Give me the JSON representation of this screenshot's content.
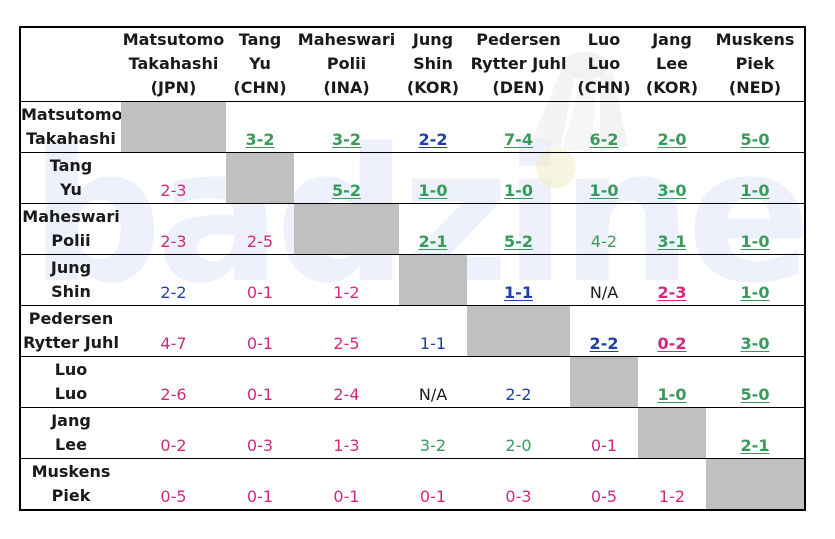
{
  "columns": [
    {
      "name": [
        "Matsutomo",
        "Takahashi"
      ],
      "country": "(JPN)"
    },
    {
      "name": [
        "Tang",
        "Yu"
      ],
      "country": "(CHN)"
    },
    {
      "name": [
        "Maheswari",
        "Polii"
      ],
      "country": "(INA)"
    },
    {
      "name": [
        "Jung",
        "Shin"
      ],
      "country": "(KOR)"
    },
    {
      "name": [
        "Pedersen",
        "Rytter Juhl"
      ],
      "country": "(DEN)"
    },
    {
      "name": [
        "Luo",
        "Luo"
      ],
      "country": "(CHN)"
    },
    {
      "name": [
        "Jang",
        "Lee"
      ],
      "country": "(KOR)"
    },
    {
      "name": [
        "Muskens",
        "Piek"
      ],
      "country": "(NED)"
    }
  ],
  "rows": [
    {
      "name": [
        "Matsutomo",
        "Takahashi"
      ],
      "cells": [
        null,
        {
          "text": "3-2",
          "color": "green",
          "bold": true,
          "underline": true
        },
        {
          "text": "3-2",
          "color": "green",
          "bold": true,
          "underline": true
        },
        {
          "text": "2-2",
          "color": "blue",
          "bold": true,
          "underline": true
        },
        {
          "text": "7-4",
          "color": "green",
          "bold": true,
          "underline": true
        },
        {
          "text": "6-2",
          "color": "green",
          "bold": true,
          "underline": true
        },
        {
          "text": "2-0",
          "color": "green",
          "bold": true,
          "underline": true
        },
        {
          "text": "5-0",
          "color": "green",
          "bold": true,
          "underline": true
        }
      ]
    },
    {
      "name": [
        "Tang",
        "Yu"
      ],
      "cells": [
        {
          "text": "2-3",
          "color": "pink"
        },
        null,
        {
          "text": "5-2",
          "color": "green",
          "bold": true,
          "underline": true
        },
        {
          "text": "1-0",
          "color": "green",
          "bold": true,
          "underline": true
        },
        {
          "text": "1-0",
          "color": "green",
          "bold": true,
          "underline": true
        },
        {
          "text": "1-0",
          "color": "green",
          "bold": true,
          "underline": true
        },
        {
          "text": "3-0",
          "color": "green",
          "bold": true,
          "underline": true
        },
        {
          "text": "1-0",
          "color": "green",
          "bold": true,
          "underline": true
        }
      ]
    },
    {
      "name": [
        "Maheswari",
        "Polii"
      ],
      "cells": [
        {
          "text": "2-3",
          "color": "pink"
        },
        {
          "text": "2-5",
          "color": "pink"
        },
        null,
        {
          "text": "2-1",
          "color": "green",
          "bold": true,
          "underline": true
        },
        {
          "text": "5-2",
          "color": "green",
          "bold": true,
          "underline": true
        },
        {
          "text": "4-2",
          "color": "green"
        },
        {
          "text": "3-1",
          "color": "green",
          "bold": true,
          "underline": true
        },
        {
          "text": "1-0",
          "color": "green",
          "bold": true,
          "underline": true
        }
      ]
    },
    {
      "name": [
        "Jung",
        "Shin"
      ],
      "cells": [
        {
          "text": "2-2",
          "color": "blue"
        },
        {
          "text": "0-1",
          "color": "pink"
        },
        {
          "text": "1-2",
          "color": "pink"
        },
        null,
        {
          "text": "1-1",
          "color": "blue",
          "bold": true,
          "underline": true
        },
        {
          "text": "N/A",
          "color": "black"
        },
        {
          "text": "2-3",
          "color": "pink",
          "bold": true,
          "underline": true
        },
        {
          "text": "1-0",
          "color": "green",
          "bold": true,
          "underline": true
        }
      ]
    },
    {
      "name": [
        "Pedersen",
        "Rytter Juhl"
      ],
      "cells": [
        {
          "text": "4-7",
          "color": "pink"
        },
        {
          "text": "0-1",
          "color": "pink"
        },
        {
          "text": "2-5",
          "color": "pink"
        },
        {
          "text": "1-1",
          "color": "blue"
        },
        null,
        {
          "text": "2-2",
          "color": "blue",
          "bold": true,
          "underline": true
        },
        {
          "text": "0-2",
          "color": "pink",
          "bold": true,
          "underline": true
        },
        {
          "text": "3-0",
          "color": "green",
          "bold": true,
          "underline": true
        }
      ]
    },
    {
      "name": [
        "Luo",
        "Luo"
      ],
      "cells": [
        {
          "text": "2-6",
          "color": "pink"
        },
        {
          "text": "0-1",
          "color": "pink"
        },
        {
          "text": "2-4",
          "color": "pink"
        },
        {
          "text": "N/A",
          "color": "black"
        },
        {
          "text": "2-2",
          "color": "blue"
        },
        null,
        {
          "text": "1-0",
          "color": "green",
          "bold": true,
          "underline": true
        },
        {
          "text": "5-0",
          "color": "green",
          "bold": true,
          "underline": true
        }
      ]
    },
    {
      "name": [
        "Jang",
        "Lee"
      ],
      "cells": [
        {
          "text": "0-2",
          "color": "pink"
        },
        {
          "text": "0-3",
          "color": "pink"
        },
        {
          "text": "1-3",
          "color": "pink"
        },
        {
          "text": "3-2",
          "color": "green"
        },
        {
          "text": "2-0",
          "color": "green"
        },
        {
          "text": "0-1",
          "color": "pink"
        },
        null,
        {
          "text": "2-1",
          "color": "green",
          "bold": true,
          "underline": true
        }
      ]
    },
    {
      "name": [
        "Muskens",
        "Piek"
      ],
      "cells": [
        {
          "text": "0-5",
          "color": "pink"
        },
        {
          "text": "0-1",
          "color": "pink"
        },
        {
          "text": "0-1",
          "color": "pink"
        },
        {
          "text": "0-1",
          "color": "pink"
        },
        {
          "text": "0-3",
          "color": "pink"
        },
        {
          "text": "0-5",
          "color": "pink"
        },
        {
          "text": "1-2",
          "color": "pink"
        },
        null
      ]
    }
  ],
  "watermark": {
    "text": "badzine",
    "icon": "shuttlecock-icon"
  }
}
